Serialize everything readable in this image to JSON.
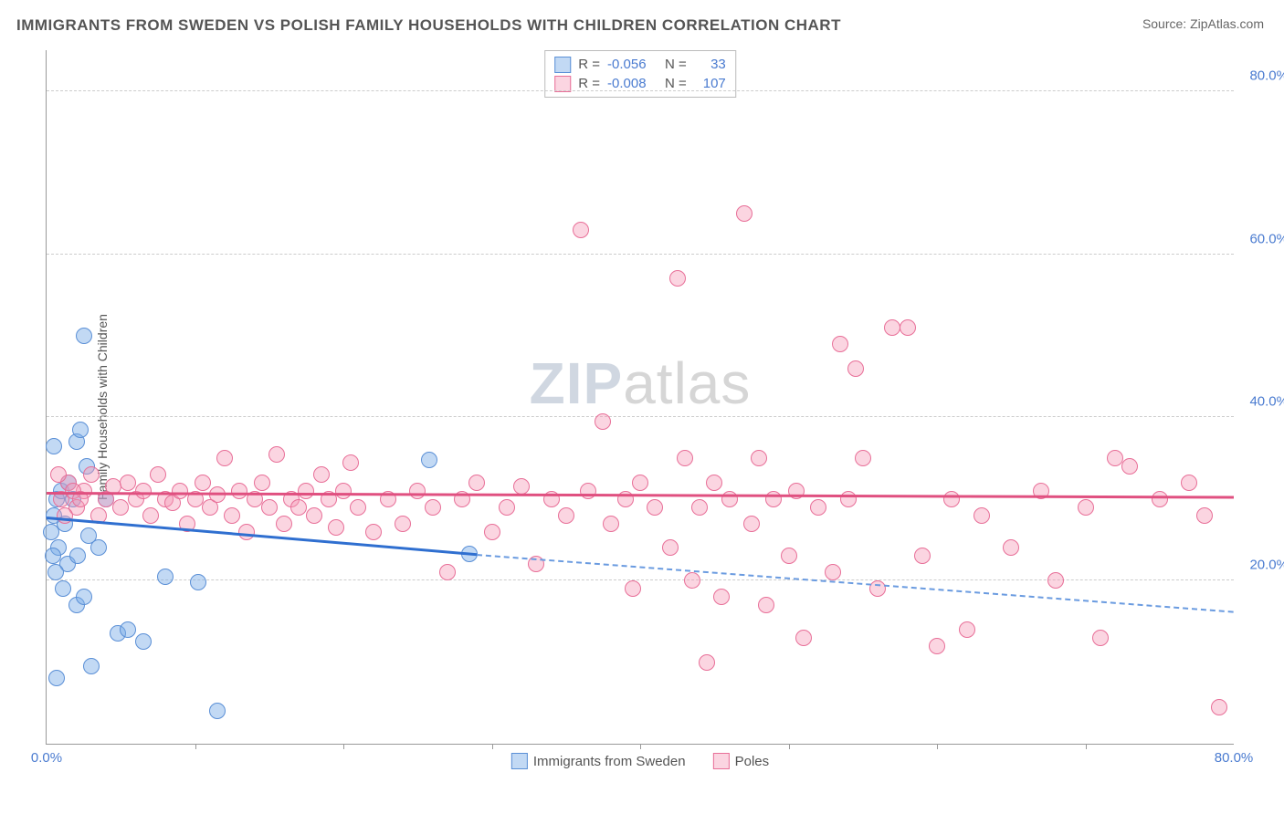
{
  "title": "IMMIGRANTS FROM SWEDEN VS POLISH FAMILY HOUSEHOLDS WITH CHILDREN CORRELATION CHART",
  "source": "Source: ZipAtlas.com",
  "watermark": {
    "zip": "ZIP",
    "atlas": "atlas"
  },
  "chart": {
    "type": "scatter",
    "ylabel": "Family Households with Children",
    "xlim": [
      0,
      80
    ],
    "ylim": [
      0,
      85
    ],
    "xtick_labels": [
      {
        "v": 0,
        "t": "0.0%"
      },
      {
        "v": 80,
        "t": "80.0%"
      }
    ],
    "xtick_marks": [
      10,
      20,
      30,
      40,
      50,
      60,
      70
    ],
    "ytick_labels": [
      {
        "v": 20,
        "t": "20.0%"
      },
      {
        "v": 40,
        "t": "40.0%"
      },
      {
        "v": 60,
        "t": "60.0%"
      },
      {
        "v": 80,
        "t": "80.0%"
      }
    ],
    "grid_color": "#cccccc",
    "background_color": "#ffffff",
    "axis_color": "#999999",
    "tick_font_color": "#4a7bd0",
    "point_radius": 9,
    "series": [
      {
        "name": "Immigrants from Sweden",
        "fill": "rgba(120,170,230,0.45)",
        "stroke": "#5a8fd6",
        "line_color": "#2f6fd0",
        "line_dash_color": "#6a9be0",
        "R": "-0.056",
        "N": "33",
        "trend": {
          "x1": 0,
          "y1": 27.5,
          "x2": 29,
          "y2": 23,
          "dash_x2": 80,
          "dash_y2": 16
        },
        "points": [
          [
            0.3,
            26
          ],
          [
            0.5,
            28
          ],
          [
            0.7,
            30
          ],
          [
            0.8,
            24
          ],
          [
            1.0,
            31
          ],
          [
            1.2,
            27
          ],
          [
            1.4,
            22
          ],
          [
            1.5,
            32
          ],
          [
            1.8,
            30
          ],
          [
            2.0,
            37
          ],
          [
            2.1,
            23
          ],
          [
            2.3,
            38.5
          ],
          [
            2.5,
            50
          ],
          [
            2.7,
            34
          ],
          [
            2.8,
            25.5
          ],
          [
            0.5,
            36.5
          ],
          [
            0.4,
            23
          ],
          [
            0.6,
            21
          ],
          [
            1.1,
            19
          ],
          [
            2.0,
            17
          ],
          [
            2.5,
            18
          ],
          [
            0.7,
            8
          ],
          [
            3.5,
            24
          ],
          [
            4.0,
            30
          ],
          [
            4.8,
            13.5
          ],
          [
            5.5,
            14
          ],
          [
            6.5,
            12.5
          ],
          [
            8.0,
            20.5
          ],
          [
            10.2,
            19.8
          ],
          [
            11.5,
            4
          ],
          [
            3.0,
            9.5
          ],
          [
            25.8,
            34.8
          ],
          [
            28.5,
            23.3
          ]
        ]
      },
      {
        "name": "Poles",
        "fill": "rgba(245,150,180,0.4)",
        "stroke": "#e86f98",
        "line_color": "#e05080",
        "R": "-0.008",
        "N": "107",
        "trend": {
          "x1": 0,
          "y1": 30.5,
          "x2": 80,
          "y2": 30
        },
        "points": [
          [
            1.0,
            30
          ],
          [
            1.5,
            32
          ],
          [
            2.0,
            29
          ],
          [
            2.5,
            31
          ],
          [
            3.0,
            33
          ],
          [
            3.5,
            28
          ],
          [
            4.0,
            30
          ],
          [
            4.5,
            31.5
          ],
          [
            5.0,
            29
          ],
          [
            5.5,
            32
          ],
          [
            6.0,
            30
          ],
          [
            6.5,
            31
          ],
          [
            7.0,
            28
          ],
          [
            7.5,
            33
          ],
          [
            8.0,
            30
          ],
          [
            8.5,
            29.5
          ],
          [
            9.0,
            31
          ],
          [
            9.5,
            27
          ],
          [
            10.0,
            30
          ],
          [
            10.5,
            32
          ],
          [
            11.0,
            29
          ],
          [
            11.5,
            30.5
          ],
          [
            12.0,
            35
          ],
          [
            12.5,
            28
          ],
          [
            13.0,
            31
          ],
          [
            13.5,
            26
          ],
          [
            14.0,
            30
          ],
          [
            14.5,
            32
          ],
          [
            15.0,
            29
          ],
          [
            15.5,
            35.5
          ],
          [
            16.0,
            27
          ],
          [
            16.5,
            30
          ],
          [
            17.0,
            29
          ],
          [
            17.5,
            31
          ],
          [
            18.0,
            28
          ],
          [
            18.5,
            33
          ],
          [
            19.0,
            30
          ],
          [
            19.5,
            26.5
          ],
          [
            20.0,
            31
          ],
          [
            20.5,
            34.5
          ],
          [
            21.0,
            29
          ],
          [
            22.0,
            26
          ],
          [
            23.0,
            30
          ],
          [
            24.0,
            27
          ],
          [
            25.0,
            31
          ],
          [
            26.0,
            29
          ],
          [
            27.0,
            21
          ],
          [
            28.0,
            30
          ],
          [
            29.0,
            32
          ],
          [
            30.0,
            26
          ],
          [
            31.0,
            29
          ],
          [
            32.0,
            31.5
          ],
          [
            33.0,
            22
          ],
          [
            34.0,
            30
          ],
          [
            35.0,
            28
          ],
          [
            36.0,
            63
          ],
          [
            36.5,
            31
          ],
          [
            37.5,
            39.5
          ],
          [
            38.0,
            27
          ],
          [
            39.0,
            30
          ],
          [
            39.5,
            19
          ],
          [
            40.0,
            32
          ],
          [
            41.0,
            29
          ],
          [
            42.0,
            24
          ],
          [
            42.5,
            57
          ],
          [
            43.0,
            35
          ],
          [
            43.5,
            20
          ],
          [
            44.0,
            29
          ],
          [
            44.5,
            10
          ],
          [
            45.0,
            32
          ],
          [
            45.5,
            18
          ],
          [
            46.0,
            30
          ],
          [
            47.0,
            65
          ],
          [
            47.5,
            27
          ],
          [
            48.0,
            35
          ],
          [
            48.5,
            17
          ],
          [
            49.0,
            30
          ],
          [
            50.0,
            23
          ],
          [
            50.5,
            31
          ],
          [
            51.0,
            13
          ],
          [
            52.0,
            29
          ],
          [
            53.0,
            21
          ],
          [
            53.5,
            49
          ],
          [
            54.0,
            30
          ],
          [
            54.5,
            46
          ],
          [
            55.0,
            35
          ],
          [
            56.0,
            19
          ],
          [
            57.0,
            51
          ],
          [
            58.0,
            51
          ],
          [
            59.0,
            23
          ],
          [
            60.0,
            12
          ],
          [
            61.0,
            30
          ],
          [
            62.0,
            14
          ],
          [
            63.0,
            28
          ],
          [
            65.0,
            24
          ],
          [
            67.0,
            31
          ],
          [
            68.0,
            20
          ],
          [
            70.0,
            29
          ],
          [
            71.0,
            13
          ],
          [
            72.0,
            35
          ],
          [
            73.0,
            34
          ],
          [
            75.0,
            30
          ],
          [
            77.0,
            32
          ],
          [
            78.0,
            28
          ],
          [
            79.0,
            4.5
          ],
          [
            1.2,
            28
          ],
          [
            1.8,
            31
          ],
          [
            2.3,
            30
          ],
          [
            0.8,
            33
          ]
        ]
      }
    ]
  },
  "bottom_legend": [
    {
      "label": "Immigrants from Sweden",
      "fill": "rgba(120,170,230,0.45)",
      "stroke": "#5a8fd6"
    },
    {
      "label": "Poles",
      "fill": "rgba(245,150,180,0.4)",
      "stroke": "#e86f98"
    }
  ]
}
